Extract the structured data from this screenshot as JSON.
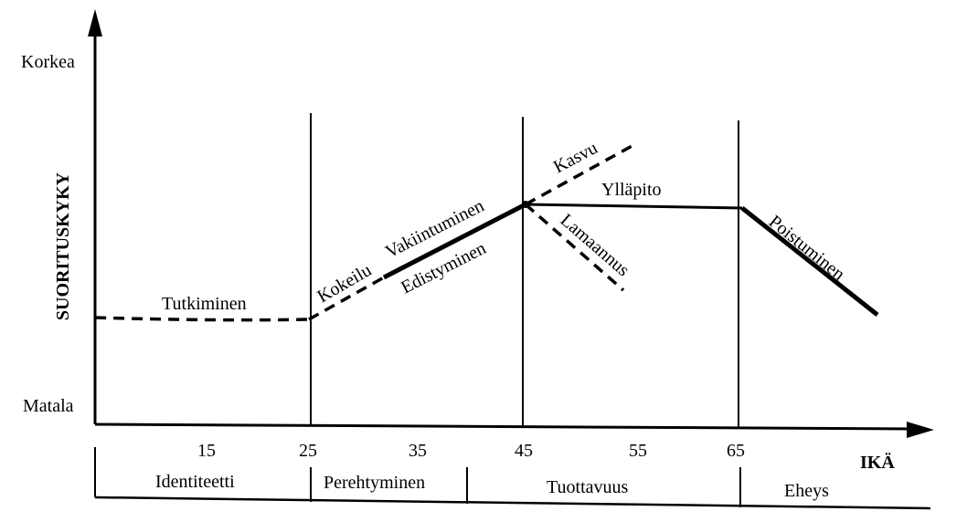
{
  "y_axis": {
    "title": "SUORITUSKYKY",
    "high_label": "Korkea",
    "low_label": "Matala"
  },
  "x_axis": {
    "title": "IKÄ",
    "ticks": [
      "15",
      "25",
      "35",
      "45",
      "55",
      "65"
    ]
  },
  "phases": [
    "Identiteetti",
    "Perehtyminen",
    "Tuottavuus",
    "Eheys"
  ],
  "curve_labels": {
    "tutkiminen": "Tutkiminen",
    "kokeilu": "Kokeilu",
    "vakiintuminen": "Vakiintuminen",
    "edistyminen": "Edistyminen",
    "kasvu": "Kasvu",
    "yllapito": "Ylläpito",
    "lamaannus": "Lamaannus",
    "poistuminen": "Poistuminen"
  },
  "colors": {
    "ink": "#000000",
    "background": "#ffffff"
  }
}
